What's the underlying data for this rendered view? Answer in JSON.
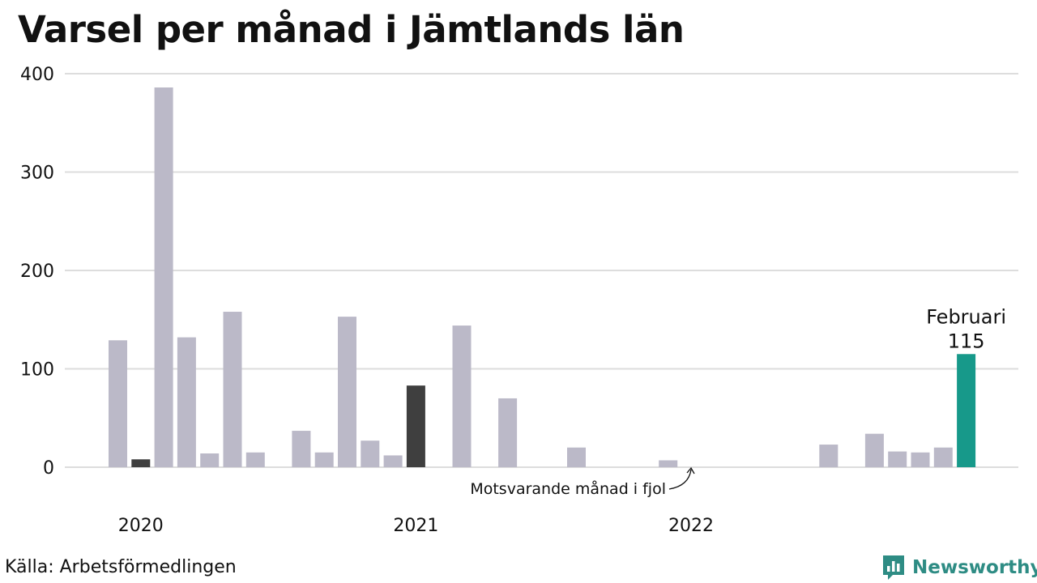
{
  "chart_data": {
    "type": "bar",
    "title": "Varsel per månad i Jämtlands län",
    "ylim": [
      0,
      400
    ],
    "yticks": [
      0,
      100,
      200,
      300,
      400
    ],
    "x_labels": [
      "2020",
      "2021",
      "2022"
    ],
    "x_label_months": [
      1,
      13,
      25
    ],
    "months": 38,
    "series": [
      {
        "name": "Varsel",
        "values": [
          129,
          8,
          386,
          132,
          14,
          158,
          15,
          null,
          37,
          15,
          153,
          27,
          12,
          83,
          0,
          144,
          0,
          70,
          0,
          0,
          20,
          0,
          0,
          0,
          7,
          0,
          0,
          0,
          0,
          0,
          0,
          23,
          0,
          34,
          16,
          15,
          20,
          115
        ]
      }
    ],
    "highlight": {
      "index": 37,
      "label": "Februari",
      "value": "115",
      "color": "#17998a"
    },
    "previous_year_indices": [
      1,
      13
    ],
    "colors": {
      "default": "#bbb9c8",
      "previous_year": "#3f3f3f",
      "highlight": "#17998a",
      "grid": "#dddddd"
    },
    "annotation": "Motsvarande månad i fjol"
  },
  "source": "Källa: Arbetsförmedlingen",
  "brand": {
    "name": "Newsworthy",
    "icon": "newsworthy-logo-icon",
    "color": "#2e8c84"
  }
}
